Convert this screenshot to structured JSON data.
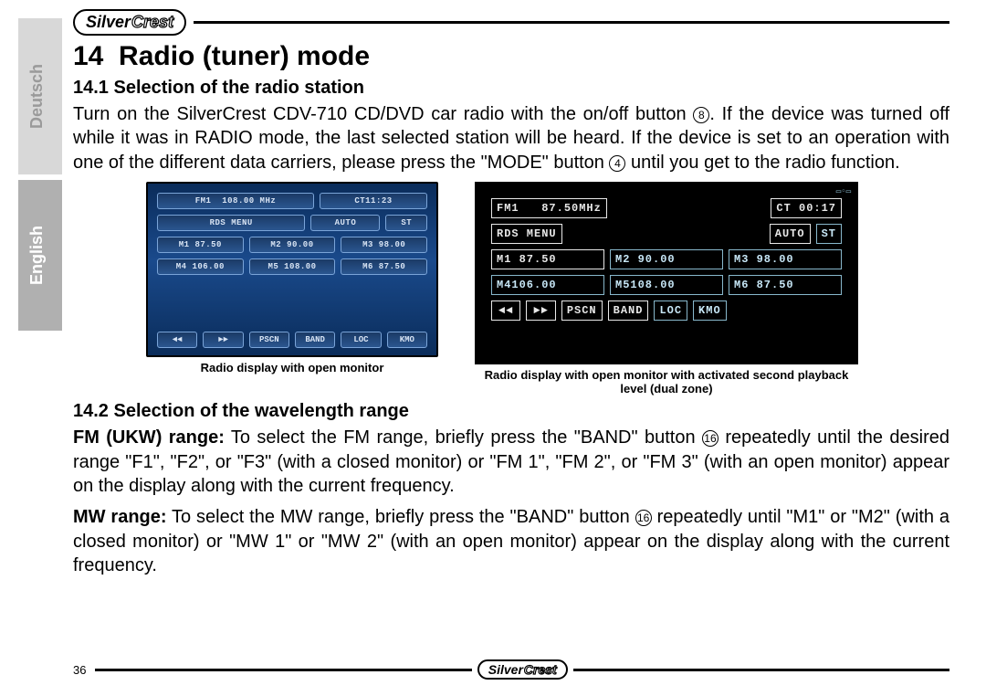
{
  "brand": {
    "part1": "Silver",
    "part2": "Crest"
  },
  "sidebar": {
    "langs": [
      {
        "label": "Deutsch",
        "active": false
      },
      {
        "label": "English",
        "active": true
      }
    ]
  },
  "section": {
    "number": "14",
    "title": "Radio (tuner) mode",
    "sub1_num": "14.1",
    "sub1_title": "Selection of the radio station",
    "sub2_num": "14.2",
    "sub2_title": "Selection of the wavelength range"
  },
  "para1_a": "Turn on the SilverCrest CDV-710 CD/DVD car radio with the on/off button ",
  "para1_ref1": "8",
  "para1_b": ". If the device was turned off while it was in RADIO mode, the last selected station will be heard. If the device is set to an operation with one of the different data carriers, please press the \"MODE\" button ",
  "para1_ref2": "4",
  "para1_c": " until you get to the radio function.",
  "fig1_caption": "Radio display with open monitor",
  "fig2_caption": "Radio display with open monitor with activated second playback level (dual zone)",
  "para2_a": "FM (UKW) range:",
  "para2_b": " To select the FM range, briefly press the \"BAND\" button ",
  "para2_ref": "16",
  "para2_c": " repeatedly until the desired range \"F1\", \"F2\", or \"F3\" (with a closed monitor) or \"FM 1\", \"FM 2\", or \"FM 3\" (with an open monitor) appear on the display along with the current frequency.",
  "para3_a": "MW range:",
  "para3_b": " To select the MW range, briefly press the \"BAND\" button ",
  "para3_ref": "16",
  "para3_c": " repeatedly until \"M1\" or \"M2\" (with a closed monitor) or \"MW 1\" or \"MW 2\" (with an open monitor) appear on the display along with the current frequency.",
  "radio1": {
    "row1": {
      "band": "FM1",
      "freq": "108.00 MHz",
      "ct": "CT11:23"
    },
    "row2": {
      "rds": "RDS MENU",
      "auto": "AUTO",
      "st": "ST"
    },
    "presets": [
      {
        "n": "M1",
        "f": "87.50"
      },
      {
        "n": "M2",
        "f": "90.00"
      },
      {
        "n": "M3",
        "f": "98.00"
      },
      {
        "n": "M4",
        "f": "106.00"
      },
      {
        "n": "M5",
        "f": "108.00"
      },
      {
        "n": "M6",
        "f": "87.50"
      }
    ],
    "bottom": [
      "◄◄",
      "►►",
      "PSCN",
      "BAND",
      "LOC",
      "KMO"
    ]
  },
  "radio2": {
    "row1": {
      "band": "FM1",
      "freq": "87.50MHz",
      "ct": "CT 00:17"
    },
    "row2": {
      "rds": "RDS MENU",
      "auto": "AUTO",
      "st": "ST"
    },
    "presets_top": [
      {
        "n": "M1",
        "f": "87.50",
        "white": true
      },
      {
        "n": "M2",
        "f": "90.00"
      },
      {
        "n": "M3",
        "f": "98.00"
      }
    ],
    "presets_bot": [
      {
        "n": "M4",
        "f": "106.00"
      },
      {
        "n": "M5",
        "f": "108.00"
      },
      {
        "n": "M6",
        "f": "87.50"
      }
    ],
    "bottom": [
      "◄◄",
      "►►",
      "PSCN",
      "BAND",
      "LOC",
      "KMO"
    ]
  },
  "page_number": "36"
}
